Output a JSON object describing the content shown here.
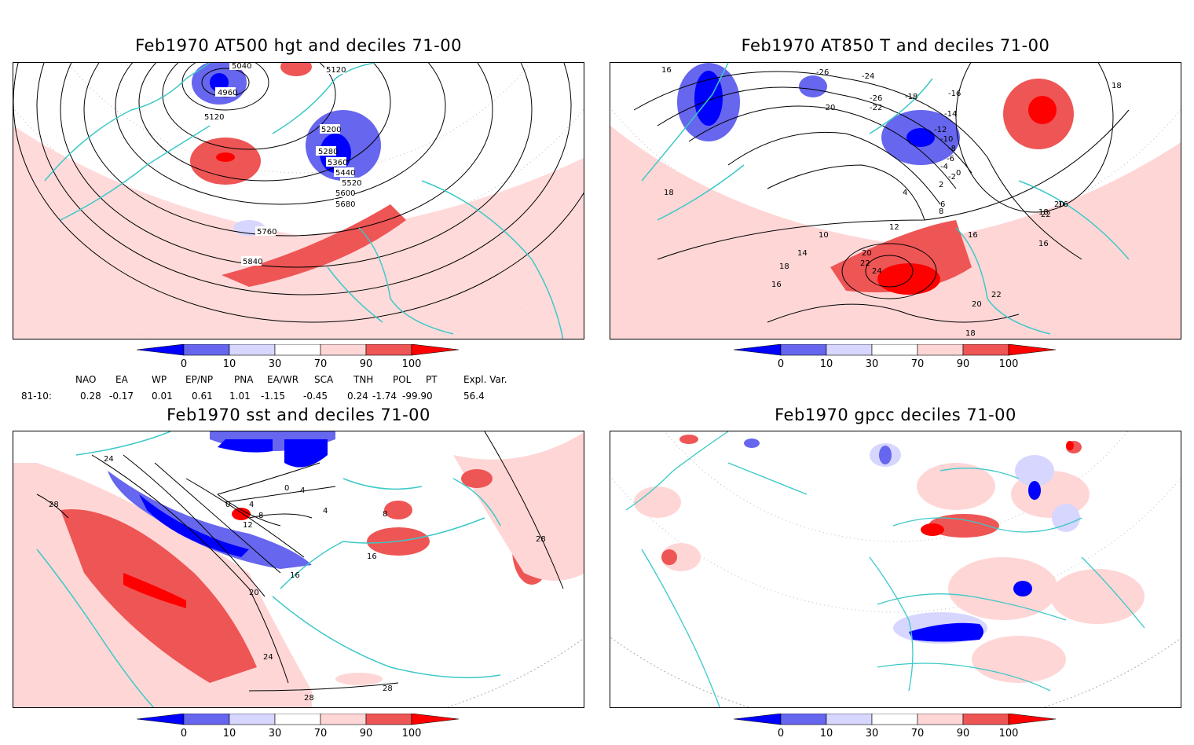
{
  "panels": [
    {
      "id": "p1",
      "title": "Feb1970 AT500 hgt and deciles 71-00",
      "contour_labels": [
        "5040",
        "5120",
        "4960",
        "5120",
        "5200",
        "5280",
        "5360",
        "5440",
        "5520",
        "5600",
        "5680",
        "5760",
        "5840"
      ]
    },
    {
      "id": "p2",
      "title": "Feb1970 AT850 T and deciles 71-00",
      "contour_labels": [
        "16",
        "-26",
        "-24",
        "-20",
        "-26",
        "-22",
        "-18",
        "-16",
        "-14",
        "-12",
        "-10",
        "-8",
        "-6",
        "-4",
        "-2",
        "0",
        "2",
        "4",
        "6",
        "8",
        "10",
        "12",
        "14",
        "16",
        "18",
        "20",
        "22",
        "24",
        "16",
        "18",
        "18",
        "20",
        "22",
        "22",
        "20",
        "18",
        "16",
        "16",
        "18"
      ]
    },
    {
      "id": "p3",
      "title": "Feb1970 sst and deciles 71-00",
      "contour_labels": [
        "28",
        "24",
        "0",
        "4",
        "8",
        "12",
        "0",
        "4",
        "4",
        "16",
        "20",
        "24",
        "28",
        "28",
        "16",
        "8",
        "28"
      ]
    },
    {
      "id": "p4",
      "title": "Feb1970 gpcc deciles 71-00",
      "contour_labels": []
    }
  ],
  "colorbar": {
    "ticks": [
      "0",
      "10",
      "30",
      "70",
      "90",
      "100"
    ],
    "colors": {
      "deep_blue": "#0000ff",
      "mid_blue": "#6666ee",
      "light_blue": "#d6d6ff",
      "white": "#ffffff",
      "light_red": "#ffd6d6",
      "mid_red": "#ee5555",
      "deep_red": "#ff0000"
    }
  },
  "teleconnections": {
    "headers": [
      "NAO",
      "EA",
      "WP",
      "EP/NP",
      "PNA",
      "EA/WR",
      "SCA",
      "TNH",
      "POL",
      "PT",
      "Expl. Var."
    ],
    "row_label": "81-10:",
    "values": [
      "0.28",
      "-0.17",
      "0.01",
      "0.61",
      "1.01",
      "-1.15",
      "-0.45",
      "0.24",
      "-1.74",
      "-99.90",
      "56.4"
    ]
  },
  "map_colors": {
    "coast": "#3cc8c8",
    "contour": "#000000",
    "grid": "#999999"
  }
}
